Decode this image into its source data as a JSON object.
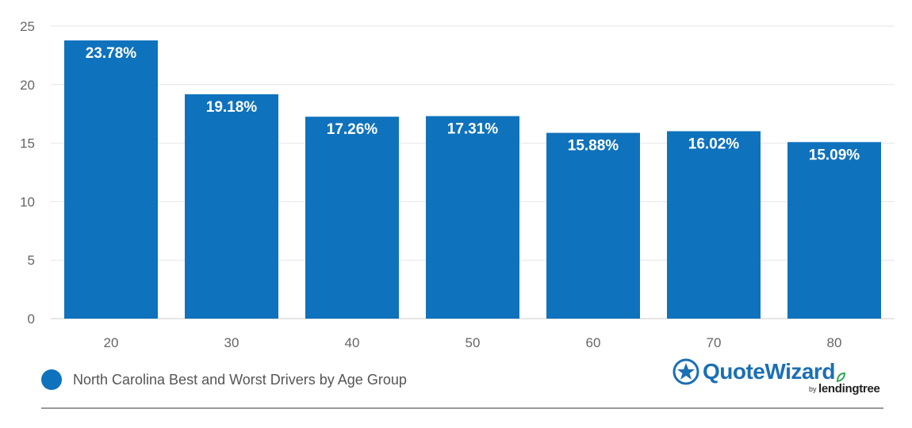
{
  "chart_data": {
    "type": "bar",
    "categories": [
      "20",
      "30",
      "40",
      "50",
      "60",
      "70",
      "80"
    ],
    "series": [
      {
        "name": "North Carolina Best and Worst Drivers by Age Group",
        "values": [
          23.78,
          19.18,
          17.26,
          17.31,
          15.88,
          16.02,
          15.09
        ],
        "labels": [
          "23.78%",
          "19.18%",
          "17.26%",
          "17.31%",
          "15.88%",
          "16.02%",
          "15.09%"
        ]
      }
    ],
    "yticks": [
      "0",
      "5",
      "10",
      "15",
      "20",
      "25"
    ],
    "ylim": [
      0,
      25
    ],
    "grid": true,
    "legend_position": "bottom-left",
    "bar_color": "#0f72bd"
  },
  "branding": {
    "logo_name": "QuoteWizard",
    "logo_by": "by",
    "logo_parent": "lendingtree",
    "logo_color": "#1a6fb5",
    "accent_color": "#2fa84f"
  }
}
